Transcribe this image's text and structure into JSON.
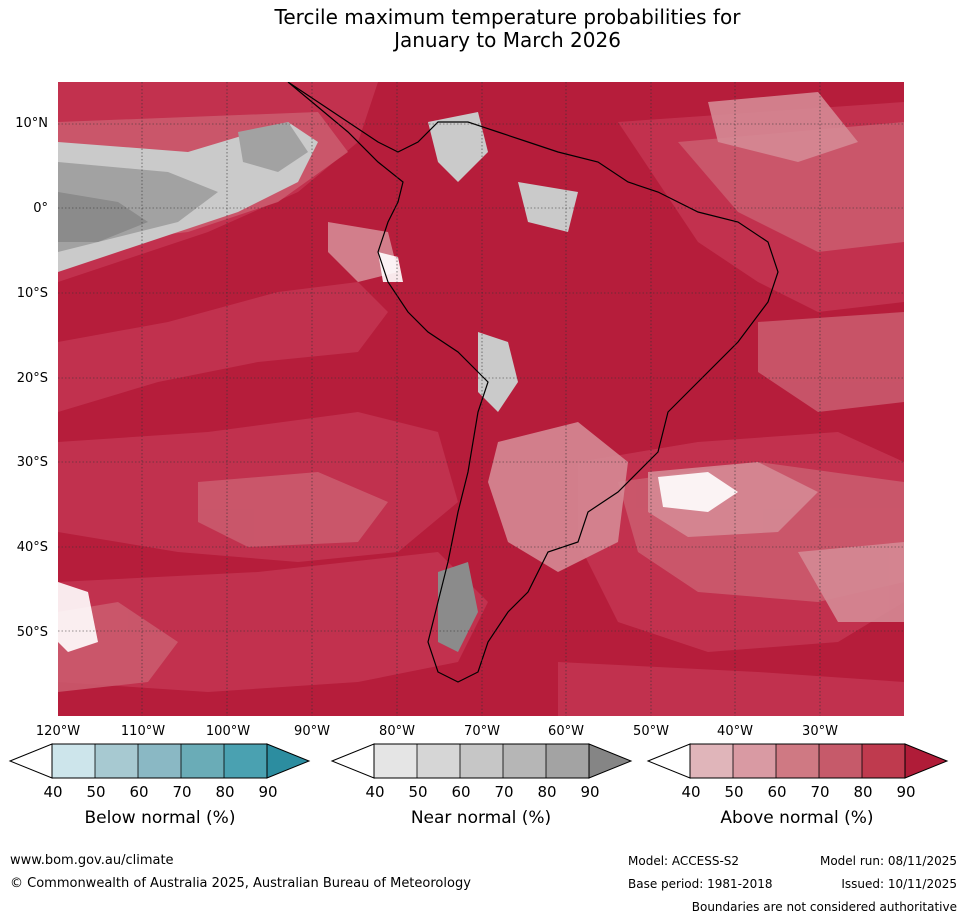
{
  "title": {
    "line1": "Tercile maximum temperature probabilities for",
    "line2": "January to March 2026"
  },
  "map": {
    "latitude_labels": [
      "10°N",
      "0°",
      "10°S",
      "20°S",
      "30°S",
      "40°S",
      "50°S"
    ],
    "longitude_labels": [
      "120°W",
      "110°W",
      "100°W",
      "90°W",
      "80°W",
      "70°W",
      "60°W",
      "50°W",
      "40°W",
      "30°W"
    ],
    "colors": {
      "ocean_dominant": "#b61d3b",
      "above_80": "#c33451",
      "above_70": "#cb5d70",
      "above_60": "#d58a95",
      "above_50": "#e0b3b9",
      "near_normal_90": "#8b8b8b",
      "near_normal_80": "#a2a2a2",
      "near_normal_60": "#cacaca",
      "white_40": "#ffffff"
    }
  },
  "legends": [
    {
      "label": "Below normal (%)",
      "ticks": [
        "40",
        "50",
        "60",
        "70",
        "80",
        "90"
      ],
      "colors": [
        "#cde5eb",
        "#a7c9d1",
        "#8ab8c4",
        "#6aacb7",
        "#4aa1b1",
        "#2c8da0"
      ]
    },
    {
      "label": "Near normal (%)",
      "ticks": [
        "40",
        "50",
        "60",
        "70",
        "80",
        "90"
      ],
      "colors": [
        "#e5e5e5",
        "#d6d6d6",
        "#c6c6c6",
        "#b6b6b6",
        "#a3a3a3",
        "#858585"
      ]
    },
    {
      "label": "Above normal (%)",
      "ticks": [
        "40",
        "50",
        "60",
        "70",
        "80",
        "90"
      ],
      "colors": [
        "#e0b5ba",
        "#d99aa3",
        "#cf7983",
        "#c65a6a",
        "#bf3a4e",
        "#b01c38"
      ]
    }
  ],
  "footer": {
    "website": "www.bom.gov.au/climate",
    "copyright": "© Commonwealth of Australia 2025, Australian Bureau of Meteorology",
    "model": "Model: ACCESS-S2",
    "base_period": "Base period: 1981-2018",
    "model_run": "Model run: 08/11/2025",
    "issued": "Issued: 10/11/2025",
    "disclaimer": "Boundaries are not considered authoritative"
  }
}
